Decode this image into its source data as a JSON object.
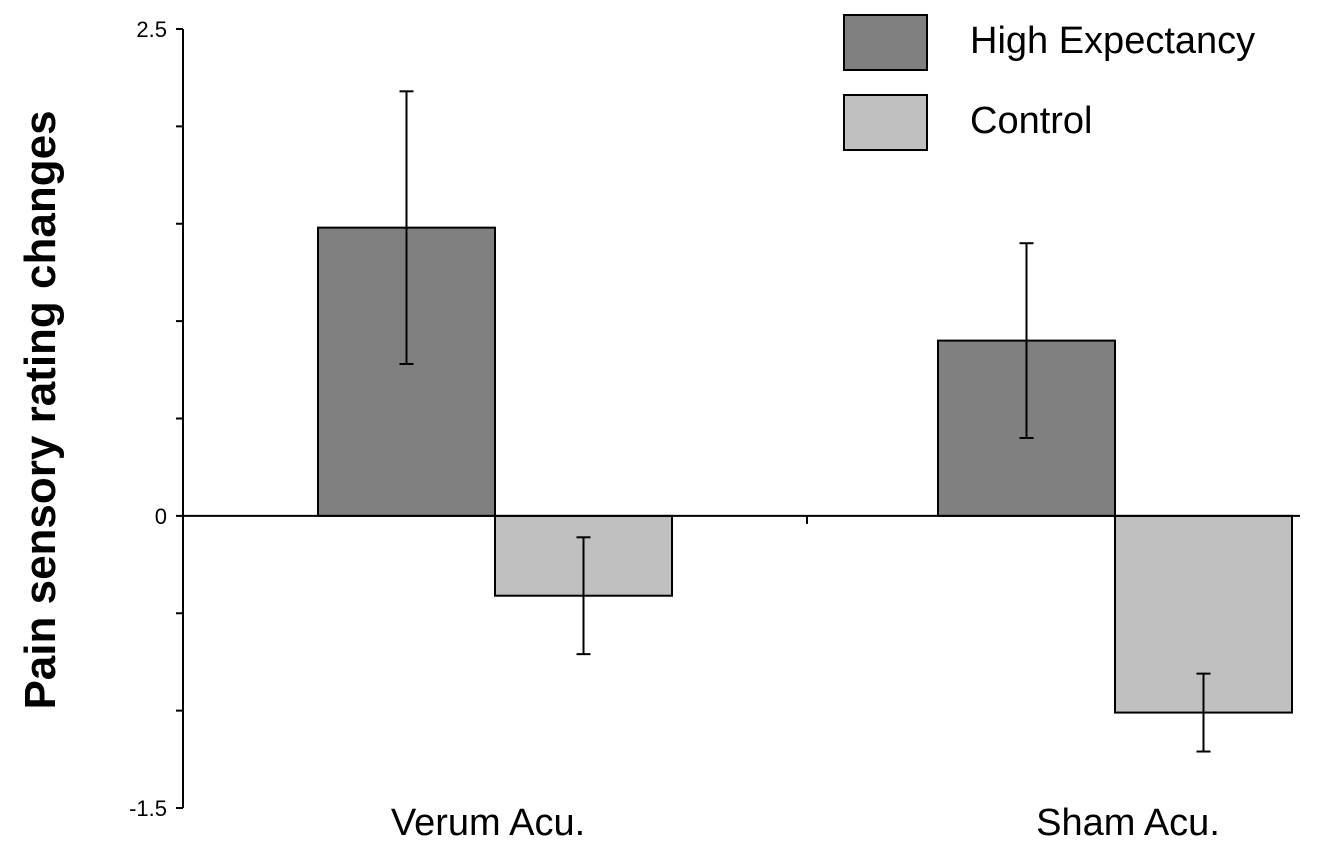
{
  "chart_data": {
    "type": "bar",
    "title": "",
    "xlabel": "",
    "ylabel": "Pain sensory rating changes",
    "ylim": [
      -1.5,
      2.5
    ],
    "yticks_labeled": [
      "2.5",
      "0",
      "-1.5"
    ],
    "categories": [
      "Verum Acu.",
      "Sham Acu."
    ],
    "series": [
      {
        "name": "High Expectancy",
        "color": "#808080",
        "values": [
          1.48,
          0.9
        ],
        "error": [
          0.7,
          0.5
        ]
      },
      {
        "name": "Control",
        "color": "#c0c0c0",
        "values": [
          -0.41,
          -1.01
        ],
        "error": [
          0.3,
          0.2
        ]
      }
    ],
    "grid": false,
    "legend": "top-right"
  }
}
